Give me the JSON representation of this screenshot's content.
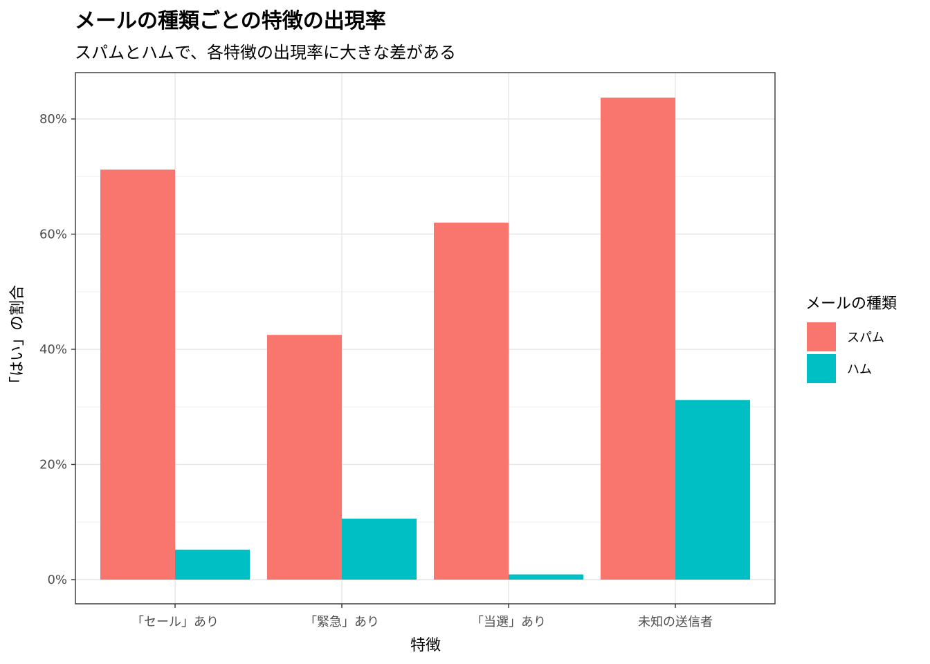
{
  "chart_data": {
    "type": "bar",
    "title": "メールの種類ごとの特徴の出現率",
    "subtitle": "スパムとハムで、各特徴の出現率に大きな差がある",
    "xlabel": "特徴",
    "ylabel": "「はい」の割合",
    "categories": [
      "「セール」あり",
      "「緊急」あり",
      "「当選」あり",
      "未知の送信者"
    ],
    "series": [
      {
        "name": "スパム",
        "color": "#F8766D",
        "values": [
          0.712,
          0.425,
          0.62,
          0.837
        ]
      },
      {
        "name": "ハム",
        "color": "#00BFC4",
        "values": [
          0.052,
          0.106,
          0.009,
          0.312
        ]
      }
    ],
    "ylim": [
      0,
      0.8
    ],
    "yticks": [
      0,
      0.2,
      0.4,
      0.6,
      0.8
    ],
    "ytick_labels": [
      "0%",
      "20%",
      "40%",
      "60%",
      "80%"
    ],
    "grid": true,
    "legend": {
      "title": "メールの種類",
      "position": "right"
    }
  }
}
